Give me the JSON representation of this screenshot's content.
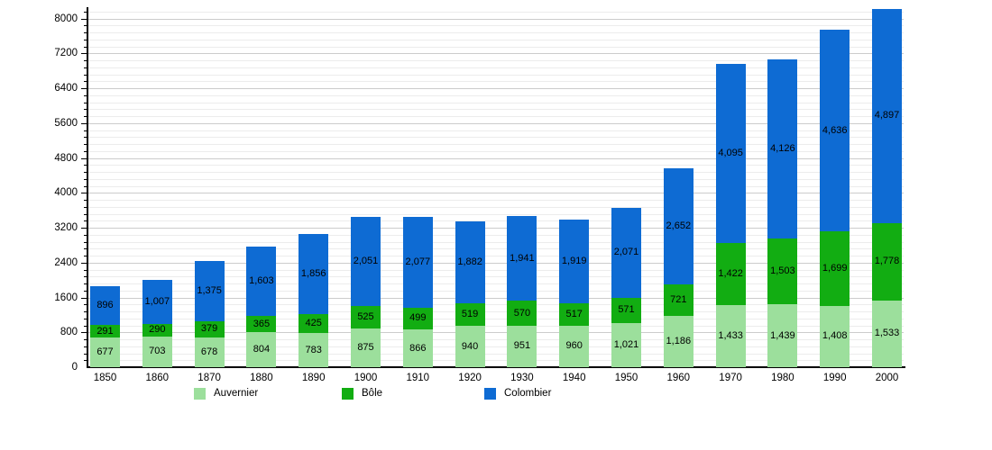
{
  "chart_data": {
    "type": "bar",
    "stacked": true,
    "title": "",
    "categories": [
      "1850",
      "1860",
      "1870",
      "1880",
      "1890",
      "1900",
      "1910",
      "1920",
      "1930",
      "1940",
      "1950",
      "1960",
      "1970",
      "1980",
      "1990",
      "2000"
    ],
    "series": [
      {
        "name": "Auvernier",
        "color": "#9CDF9C",
        "values": [
          677,
          703,
          678,
          804,
          783,
          875,
          866,
          940,
          951,
          960,
          1021,
          1186,
          1433,
          1439,
          1408,
          1533
        ]
      },
      {
        "name": "Bôle",
        "color": "#12AD12",
        "values": [
          291,
          290,
          379,
          365,
          425,
          525,
          499,
          519,
          570,
          517,
          571,
          721,
          1422,
          1503,
          1699,
          1778
        ]
      },
      {
        "name": "Colombier",
        "color": "#0E6BD3",
        "values": [
          896,
          1007,
          1375,
          1603,
          1856,
          2051,
          2077,
          1882,
          1941,
          1919,
          2071,
          2652,
          4095,
          4126,
          4636,
          4897
        ]
      }
    ],
    "xlabel": "",
    "ylabel": "",
    "ylim": [
      0,
      8000
    ],
    "y_ticks": [
      0,
      800,
      1600,
      2400,
      3200,
      4000,
      4800,
      5600,
      6400,
      7200,
      8000
    ],
    "y_minor_step": 160,
    "grid": "horizontal",
    "legend_position": "bottom",
    "value_labels": "shown-inside-segments, thousands comma format",
    "colors": {
      "grid_major": "#cccccc",
      "grid_minor": "#ececec",
      "axis": "#000000",
      "text": "#000000",
      "background": "#ffffff"
    }
  }
}
